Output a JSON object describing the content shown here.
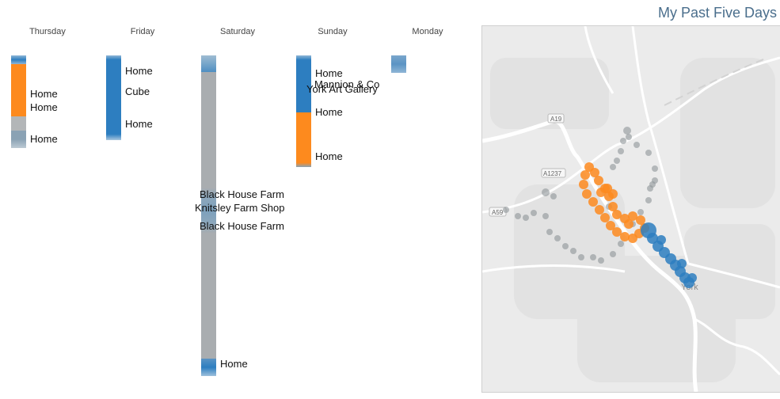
{
  "page": {
    "title": "My Past Five Days"
  },
  "colors": {
    "home": "#2d7ec0",
    "travel": "#fd8a1e",
    "gray": "#a3a8ac",
    "graybar": "#b2b6b9",
    "light_blue": "#7fa4bd",
    "title": "#4a6e8c"
  },
  "days": [
    {
      "name": "Thursday",
      "labels": [
        "Home",
        "Home",
        "Home"
      ]
    },
    {
      "name": "Friday",
      "labels": [
        "Home",
        "Cube",
        "Home"
      ]
    },
    {
      "name": "Saturday",
      "labels": [
        "Black House Farm",
        "Knitsley Farm Shop",
        "Black House Farm",
        "Home"
      ]
    },
    {
      "name": "Sunday",
      "labels": [
        "Home",
        "Mannion & Co",
        "York Art Gallery",
        "Home",
        "Home"
      ]
    },
    {
      "name": "Monday",
      "labels": []
    }
  ],
  "map": {
    "road_labels": [
      "A19",
      "A1237",
      "A59"
    ],
    "city_label": "York"
  }
}
